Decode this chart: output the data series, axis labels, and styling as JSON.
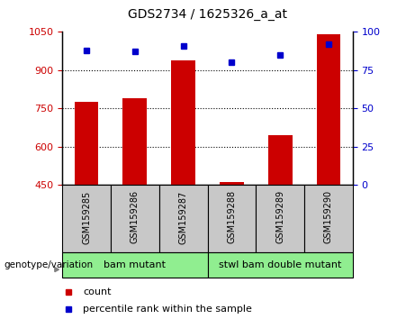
{
  "title": "GDS2734 / 1625326_a_at",
  "samples": [
    "GSM159285",
    "GSM159286",
    "GSM159287",
    "GSM159288",
    "GSM159289",
    "GSM159290"
  ],
  "counts": [
    775,
    790,
    940,
    460,
    645,
    1040
  ],
  "percentile_ranks": [
    88,
    87,
    91,
    80,
    85,
    92
  ],
  "ylim_left": [
    450,
    1050
  ],
  "ylim_right": [
    0,
    100
  ],
  "yticks_left": [
    450,
    600,
    750,
    900,
    1050
  ],
  "yticks_right": [
    0,
    25,
    50,
    75,
    100
  ],
  "bar_color": "#cc0000",
  "dot_color": "#0000cc",
  "grid_color": "#000000",
  "group1_label": "bam mutant",
  "group2_label": "stwl bam double mutant",
  "group_color": "#90ee90",
  "genotype_label": "genotype/variation",
  "legend_count_label": "count",
  "legend_percentile_label": "percentile rank within the sample",
  "tick_label_color_left": "#cc0000",
  "tick_label_color_right": "#0000cc",
  "background_xticklabels": "#c8c8c8"
}
